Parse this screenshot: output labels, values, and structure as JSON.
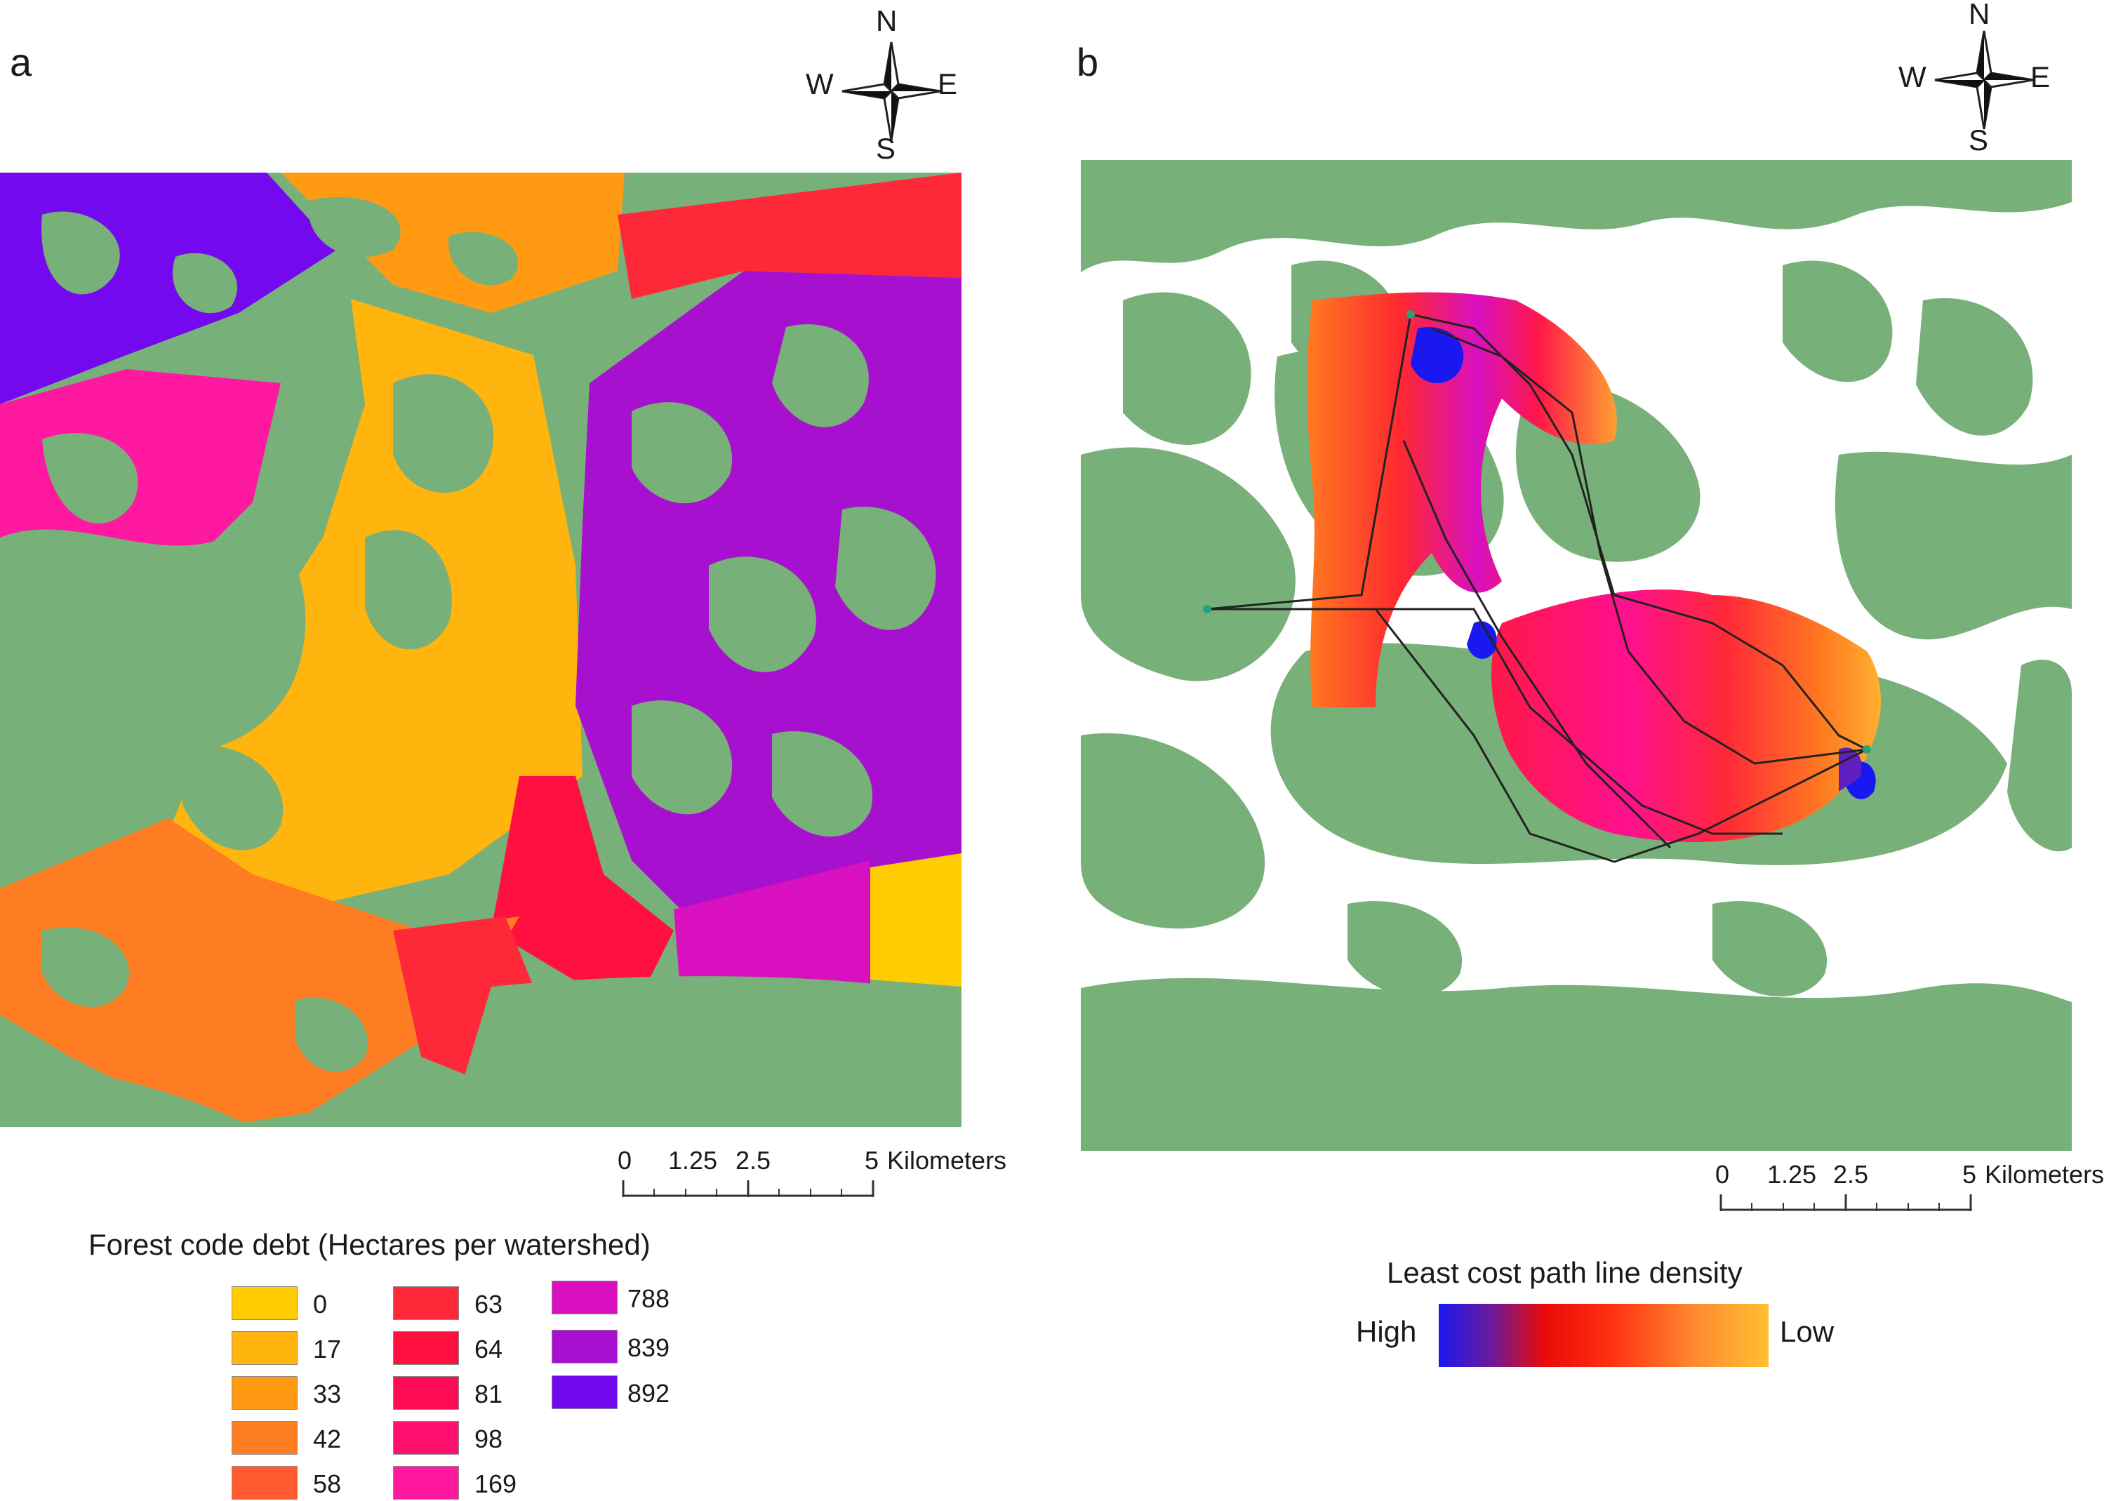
{
  "panel_a": {
    "letter": "a",
    "compass": {
      "n": "N",
      "s": "S",
      "e": "E",
      "w": "W"
    },
    "scale": {
      "ticks": [
        "0",
        "1.25",
        "2.5",
        "5"
      ],
      "unit": "Kilometers"
    },
    "legend": {
      "title": "Forest code debt (Hectares per watershed)",
      "classes": [
        {
          "value": "0",
          "color": "#ffcc00"
        },
        {
          "value": "17",
          "color": "#ffb40e"
        },
        {
          "value": "33",
          "color": "#ff9a12"
        },
        {
          "value": "42",
          "color": "#ff7d22"
        },
        {
          "value": "58",
          "color": "#ff5a30"
        },
        {
          "value": "63",
          "color": "#ff2838"
        },
        {
          "value": "64",
          "color": "#ff1040"
        },
        {
          "value": "81",
          "color": "#ff0a55"
        },
        {
          "value": "98",
          "color": "#ff106e"
        },
        {
          "value": "169",
          "color": "#ff18a0"
        },
        {
          "value": "788",
          "color": "#d810c0"
        },
        {
          "value": "839",
          "color": "#a810d0"
        },
        {
          "value": "892",
          "color": "#7008f0"
        }
      ]
    }
  },
  "panel_b": {
    "letter": "b",
    "compass": {
      "n": "N",
      "s": "S",
      "e": "E",
      "w": "W"
    },
    "scale": {
      "ticks": [
        "0",
        "1.25",
        "2.5",
        "5"
      ],
      "unit": "Kilometers"
    },
    "legend": {
      "title": "Least cost path line density",
      "high_label": "High",
      "low_label": "Low",
      "gradient_colors": [
        "#1a18f0",
        "#ea0a0a",
        "#ffc030"
      ]
    }
  },
  "colors": {
    "forest": "#78b07a"
  }
}
